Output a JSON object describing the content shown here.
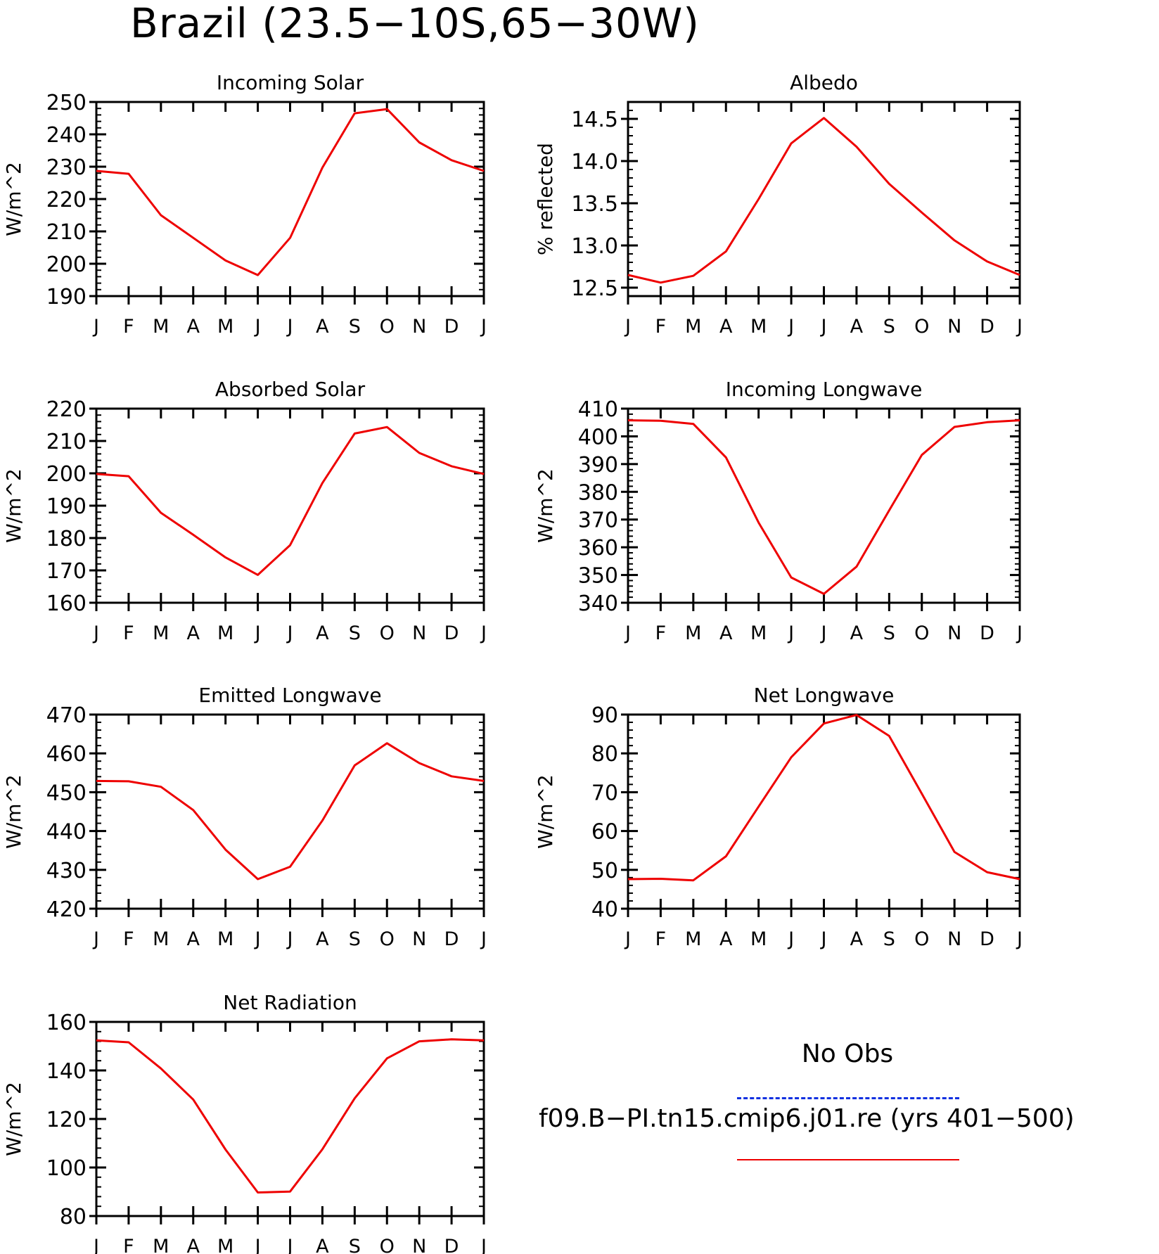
{
  "title": "Brazil (23.5−10S,65−30W)",
  "months": [
    "J",
    "F",
    "M",
    "A",
    "M",
    "J",
    "J",
    "A",
    "S",
    "O",
    "N",
    "D",
    "J"
  ],
  "colors": {
    "model": "#ee0000",
    "obs": "#1030e0",
    "axis": "#000000"
  },
  "legend": {
    "obs_label": "No Obs",
    "model_label": "f09.B−PI.tn15.cmip6.j01.re (yrs 401−500)"
  },
  "chart_data": [
    {
      "type": "line",
      "title": "Incoming Solar",
      "ylabel": "W/m^2",
      "ylim": [
        190,
        250
      ],
      "yticks": [
        "250",
        "240",
        "230",
        "220",
        "210",
        "200",
        "190"
      ],
      "ytick_values": [
        250,
        240,
        230,
        220,
        210,
        200,
        190
      ],
      "categories": [
        "J",
        "F",
        "M",
        "A",
        "M",
        "J",
        "J",
        "A",
        "S",
        "O",
        "N",
        "D",
        "J"
      ],
      "series": [
        {
          "values": [
            228.7,
            227.8,
            215,
            208,
            201,
            196.5,
            208,
            229.7,
            246.5,
            247.8,
            237.5,
            232,
            228.7
          ]
        }
      ]
    },
    {
      "type": "line",
      "title": "Albedo",
      "ylabel": "% reflected",
      "ylim": [
        12.4,
        14.7
      ],
      "yticks": [
        "14.5",
        "14.0",
        "13.5",
        "13.0",
        "12.5"
      ],
      "ytick_values": [
        14.5,
        14.0,
        13.5,
        13.0,
        12.5
      ],
      "categories": [
        "J",
        "F",
        "M",
        "A",
        "M",
        "J",
        "J",
        "A",
        "S",
        "O",
        "N",
        "D",
        "J"
      ],
      "series": [
        {
          "values": [
            12.65,
            12.56,
            12.64,
            12.93,
            13.55,
            14.21,
            14.51,
            14.17,
            13.73,
            13.39,
            13.06,
            12.81,
            12.65
          ]
        }
      ]
    },
    {
      "type": "line",
      "title": "Absorbed Solar",
      "ylabel": "W/m^2",
      "ylim": [
        160,
        220
      ],
      "yticks": [
        "220",
        "210",
        "200",
        "190",
        "180",
        "170",
        "160"
      ],
      "ytick_values": [
        220,
        210,
        200,
        190,
        180,
        170,
        160
      ],
      "categories": [
        "J",
        "F",
        "M",
        "A",
        "M",
        "J",
        "J",
        "A",
        "S",
        "O",
        "N",
        "D",
        "J"
      ],
      "series": [
        {
          "values": [
            199.8,
            199.1,
            187.8,
            181,
            174,
            168.6,
            177.8,
            197,
            212.3,
            214.3,
            206.3,
            202.2,
            199.8
          ]
        }
      ]
    },
    {
      "type": "line",
      "title": "Incoming Longwave",
      "ylabel": "W/m^2",
      "ylim": [
        340,
        410
      ],
      "yticks": [
        "410",
        "400",
        "390",
        "380",
        "370",
        "360",
        "350",
        "340"
      ],
      "ytick_values": [
        410,
        400,
        390,
        380,
        370,
        360,
        350,
        340
      ],
      "categories": [
        "J",
        "F",
        "M",
        "A",
        "M",
        "J",
        "J",
        "A",
        "S",
        "O",
        "N",
        "D",
        "J"
      ],
      "series": [
        {
          "values": [
            405.8,
            405.6,
            404.5,
            392.4,
            368.9,
            349.1,
            343.2,
            353,
            373.3,
            393.3,
            403.4,
            405.1,
            405.8
          ]
        }
      ]
    },
    {
      "type": "line",
      "title": "Emitted Longwave",
      "ylabel": "W/m^2",
      "ylim": [
        420,
        470
      ],
      "yticks": [
        "470",
        "460",
        "450",
        "440",
        "430",
        "420"
      ],
      "ytick_values": [
        470,
        460,
        450,
        440,
        430,
        420
      ],
      "categories": [
        "J",
        "F",
        "M",
        "A",
        "M",
        "J",
        "J",
        "A",
        "S",
        "O",
        "N",
        "D",
        "J"
      ],
      "series": [
        {
          "values": [
            452.9,
            452.8,
            451.4,
            445.4,
            435.2,
            427.6,
            430.8,
            442.7,
            456.9,
            462.6,
            457.5,
            454.1,
            452.9
          ]
        }
      ]
    },
    {
      "type": "line",
      "title": "Net Longwave",
      "ylabel": "W/m^2",
      "ylim": [
        40,
        90
      ],
      "yticks": [
        "90",
        "80",
        "70",
        "60",
        "50",
        "40"
      ],
      "ytick_values": [
        90,
        80,
        70,
        60,
        50,
        40
      ],
      "categories": [
        "J",
        "F",
        "M",
        "A",
        "M",
        "J",
        "J",
        "A",
        "S",
        "O",
        "N",
        "D",
        "J"
      ],
      "series": [
        {
          "values": [
            47.6,
            47.7,
            47.3,
            53.5,
            66.3,
            79,
            87.7,
            89.9,
            84.5,
            69.6,
            54.6,
            49.4,
            47.6
          ]
        }
      ]
    },
    {
      "type": "line",
      "title": "Net Radiation",
      "ylabel": "W/m^2",
      "ylim": [
        80,
        160
      ],
      "yticks": [
        "160",
        "140",
        "120",
        "100",
        "80"
      ],
      "ytick_values": [
        160,
        140,
        120,
        100,
        80
      ],
      "categories": [
        "J",
        "F",
        "M",
        "A",
        "M",
        "J",
        "J",
        "A",
        "S",
        "O",
        "N",
        "D",
        "J"
      ],
      "series": [
        {
          "values": [
            152.4,
            151.6,
            140.8,
            128,
            107.4,
            89.7,
            90.1,
            107.5,
            128.5,
            145,
            152,
            152.8,
            152.4
          ]
        }
      ]
    }
  ]
}
